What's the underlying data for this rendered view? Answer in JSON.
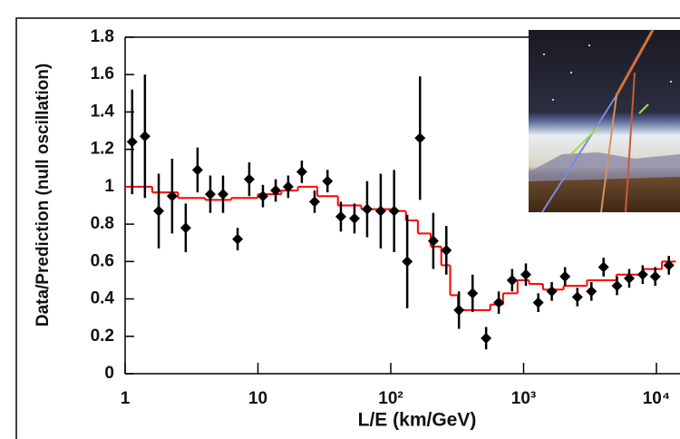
{
  "chart_data": {
    "type": "errorbar-step",
    "xlabel": "L/E (km/GeV)",
    "ylabel": "Data/Prediction (null oscillation)",
    "xscale": "log",
    "xlim": [
      1,
      14000
    ],
    "ylim": [
      0,
      1.8
    ],
    "xticks": [
      1,
      10,
      {
        "value": 100,
        "label": "10²"
      },
      {
        "value": 1000,
        "label": "10³"
      },
      {
        "value": 10000,
        "label": "10⁴"
      }
    ],
    "yticks": [
      0,
      0.2,
      0.4,
      0.6,
      0.8,
      1,
      1.2,
      1.4,
      1.6,
      1.8
    ],
    "points": {
      "color": "#000000",
      "x": [
        1.13,
        1.41,
        1.79,
        2.26,
        2.86,
        3.51,
        4.38,
        5.46,
        7.03,
        8.6,
        10.9,
        13.6,
        16.9,
        21.4,
        26.7,
        33.4,
        42.1,
        53.3,
        66.4,
        84,
        106,
        133,
        166,
        209,
        262,
        326,
        413,
        522,
        650,
        820,
        1040,
        1290,
        1630,
        2050,
        2540,
        3240,
        4000,
        5050,
        6240,
        7880,
        9800,
        12400
      ],
      "values": [
        1.24,
        1.27,
        0.87,
        0.95,
        0.78,
        1.09,
        0.96,
        0.96,
        0.72,
        1.04,
        0.95,
        0.98,
        1.0,
        1.08,
        0.92,
        1.03,
        0.84,
        0.83,
        0.88,
        0.87,
        0.87,
        0.6,
        1.26,
        0.71,
        0.66,
        0.34,
        0.43,
        0.19,
        0.38,
        0.5,
        0.53,
        0.38,
        0.44,
        0.52,
        0.41,
        0.44,
        0.57,
        0.47,
        0.51,
        0.53,
        0.52,
        0.58
      ],
      "errors": [
        0.28,
        0.33,
        0.2,
        0.2,
        0.13,
        0.12,
        0.1,
        0.1,
        0.06,
        0.09,
        0.06,
        0.06,
        0.06,
        0.06,
        0.06,
        0.06,
        0.08,
        0.08,
        0.15,
        0.2,
        0.22,
        0.25,
        0.33,
        0.15,
        0.13,
        0.1,
        0.1,
        0.06,
        0.06,
        0.06,
        0.06,
        0.05,
        0.05,
        0.05,
        0.05,
        0.05,
        0.05,
        0.05,
        0.05,
        0.05,
        0.05,
        0.05
      ]
    },
    "prediction": {
      "color": "#ff0000",
      "x": [
        1,
        1.6,
        2.5,
        4,
        6.3,
        10,
        15,
        20,
        28,
        40,
        60,
        100,
        130,
        160,
        200,
        240,
        280,
        320,
        450,
        560,
        700,
        900,
        1100,
        1400,
        2000,
        3000,
        5000,
        8000,
        11000
      ],
      "values": [
        1.0,
        0.97,
        0.94,
        0.93,
        0.94,
        0.96,
        0.98,
        1.0,
        0.95,
        0.9,
        0.88,
        0.87,
        0.82,
        0.75,
        0.68,
        0.58,
        0.42,
        0.34,
        0.34,
        0.37,
        0.43,
        0.5,
        0.48,
        0.45,
        0.47,
        0.5,
        0.53,
        0.56,
        0.6
      ]
    }
  }
}
